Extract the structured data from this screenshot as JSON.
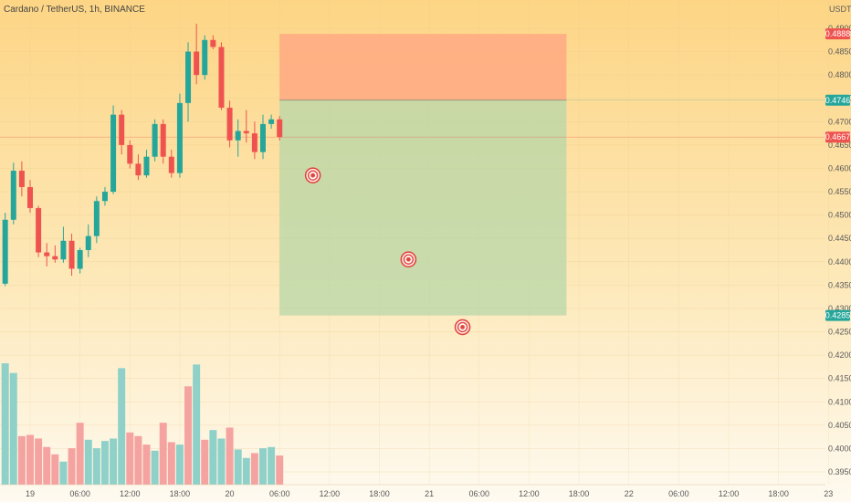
{
  "title": "Cardano / TetherUS, 1h, BINANCE",
  "currency": "USDT",
  "colors": {
    "up": "#26a69a",
    "down": "#ef5350",
    "volume_up": "#8fd1c9",
    "volume_down": "#f5a3a1",
    "stop_zone": "#ffa982",
    "target_zone": "#b7d7a8",
    "current_price": "#ef5350",
    "entry_price": "#26a69a",
    "stop_price": "#ef5350",
    "target_marker": "#e0453f"
  },
  "icons": [
    "target-icon"
  ],
  "chart_data": {
    "type": "candlestick",
    "title": "Cardano / TetherUS, 1h, BINANCE",
    "y_range": [
      0.3925,
      0.4995
    ],
    "y_ticks": [
      "0.4900",
      "0.4850",
      "0.4800",
      "0.4750",
      "0.4700",
      "0.4650",
      "0.4600",
      "0.4550",
      "0.4500",
      "0.4450",
      "0.4400",
      "0.4350",
      "0.4300",
      "0.4250",
      "0.4200",
      "0.4150",
      "0.4100",
      "0.4050",
      "0.4000",
      "0.3950"
    ],
    "x_ticks": [
      "19",
      "06:00",
      "12:00",
      "18:00",
      "20",
      "06:00",
      "12:00",
      "18:00",
      "21",
      "06:00",
      "12:00",
      "18:00",
      "22",
      "06:00",
      "12:00",
      "18:00",
      "23"
    ],
    "x_tick_hours": [
      0,
      6,
      12,
      18,
      24,
      30,
      36,
      42,
      48,
      54,
      60,
      66,
      72,
      78,
      84,
      90,
      96
    ],
    "candles": [
      {
        "h": -3,
        "o": 0.4353,
        "hi": 0.4505,
        "lo": 0.4348,
        "c": 0.449
      },
      {
        "h": -2,
        "o": 0.449,
        "hi": 0.4612,
        "lo": 0.448,
        "c": 0.4595
      },
      {
        "h": -1,
        "o": 0.4595,
        "hi": 0.4615,
        "lo": 0.454,
        "c": 0.456
      },
      {
        "h": 0,
        "o": 0.456,
        "hi": 0.4575,
        "lo": 0.4505,
        "c": 0.4515
      },
      {
        "h": 1,
        "o": 0.4515,
        "hi": 0.452,
        "lo": 0.441,
        "c": 0.442
      },
      {
        "h": 2,
        "o": 0.442,
        "hi": 0.444,
        "lo": 0.439,
        "c": 0.4412
      },
      {
        "h": 3,
        "o": 0.4412,
        "hi": 0.4435,
        "lo": 0.4398,
        "c": 0.4405
      },
      {
        "h": 4,
        "o": 0.4405,
        "hi": 0.4475,
        "lo": 0.4398,
        "c": 0.4445
      },
      {
        "h": 5,
        "o": 0.4445,
        "hi": 0.446,
        "lo": 0.437,
        "c": 0.4385
      },
      {
        "h": 6,
        "o": 0.4385,
        "hi": 0.443,
        "lo": 0.4375,
        "c": 0.4425
      },
      {
        "h": 7,
        "o": 0.4425,
        "hi": 0.448,
        "lo": 0.441,
        "c": 0.4455
      },
      {
        "h": 8,
        "o": 0.4455,
        "hi": 0.454,
        "lo": 0.444,
        "c": 0.453
      },
      {
        "h": 9,
        "o": 0.453,
        "hi": 0.456,
        "lo": 0.452,
        "c": 0.455
      },
      {
        "h": 10,
        "o": 0.455,
        "hi": 0.4735,
        "lo": 0.4545,
        "c": 0.4715
      },
      {
        "h": 11,
        "o": 0.4715,
        "hi": 0.4725,
        "lo": 0.463,
        "c": 0.465
      },
      {
        "h": 12,
        "o": 0.465,
        "hi": 0.466,
        "lo": 0.46,
        "c": 0.461
      },
      {
        "h": 13,
        "o": 0.461,
        "hi": 0.463,
        "lo": 0.4575,
        "c": 0.4585
      },
      {
        "h": 14,
        "o": 0.4585,
        "hi": 0.464,
        "lo": 0.458,
        "c": 0.4625
      },
      {
        "h": 15,
        "o": 0.4625,
        "hi": 0.4705,
        "lo": 0.4615,
        "c": 0.4695
      },
      {
        "h": 16,
        "o": 0.4695,
        "hi": 0.4705,
        "lo": 0.461,
        "c": 0.4625
      },
      {
        "h": 17,
        "o": 0.4625,
        "hi": 0.464,
        "lo": 0.458,
        "c": 0.459
      },
      {
        "h": 18,
        "o": 0.459,
        "hi": 0.476,
        "lo": 0.458,
        "c": 0.474
      },
      {
        "h": 19,
        "o": 0.474,
        "hi": 0.487,
        "lo": 0.47,
        "c": 0.485
      },
      {
        "h": 20,
        "o": 0.485,
        "hi": 0.491,
        "lo": 0.478,
        "c": 0.48
      },
      {
        "h": 21,
        "o": 0.48,
        "hi": 0.4885,
        "lo": 0.479,
        "c": 0.4875
      },
      {
        "h": 22,
        "o": 0.4875,
        "hi": 0.4885,
        "lo": 0.4855,
        "c": 0.486
      },
      {
        "h": 23,
        "o": 0.486,
        "hi": 0.487,
        "lo": 0.4725,
        "c": 0.473
      },
      {
        "h": 24,
        "o": 0.473,
        "hi": 0.4745,
        "lo": 0.4645,
        "c": 0.466
      },
      {
        "h": 25,
        "o": 0.466,
        "hi": 0.4705,
        "lo": 0.4625,
        "c": 0.468
      },
      {
        "h": 26,
        "o": 0.468,
        "hi": 0.4725,
        "lo": 0.4655,
        "c": 0.4675
      },
      {
        "h": 27,
        "o": 0.4675,
        "hi": 0.47,
        "lo": 0.462,
        "c": 0.4635
      },
      {
        "h": 28,
        "o": 0.4635,
        "hi": 0.4715,
        "lo": 0.462,
        "c": 0.4695
      },
      {
        "h": 29,
        "o": 0.4695,
        "hi": 0.4715,
        "lo": 0.4685,
        "c": 0.4705
      },
      {
        "h": 30,
        "o": 0.4705,
        "hi": 0.4712,
        "lo": 0.466,
        "c": 0.4667
      }
    ],
    "volumes": [
      {
        "h": -3,
        "v": 1.0,
        "up": true
      },
      {
        "h": -2,
        "v": 0.92,
        "up": true
      },
      {
        "h": -1,
        "v": 0.4,
        "up": false
      },
      {
        "h": 0,
        "v": 0.41,
        "up": false
      },
      {
        "h": 1,
        "v": 0.38,
        "up": false
      },
      {
        "h": 2,
        "v": 0.31,
        "up": false
      },
      {
        "h": 3,
        "v": 0.25,
        "up": false
      },
      {
        "h": 4,
        "v": 0.19,
        "up": true
      },
      {
        "h": 5,
        "v": 0.3,
        "up": false
      },
      {
        "h": 6,
        "v": 0.51,
        "up": false
      },
      {
        "h": 7,
        "v": 0.37,
        "up": true
      },
      {
        "h": 8,
        "v": 0.3,
        "up": true
      },
      {
        "h": 9,
        "v": 0.36,
        "up": true
      },
      {
        "h": 10,
        "v": 0.38,
        "up": true
      },
      {
        "h": 11,
        "v": 0.96,
        "up": true
      },
      {
        "h": 12,
        "v": 0.43,
        "up": false
      },
      {
        "h": 13,
        "v": 0.4,
        "up": false
      },
      {
        "h": 14,
        "v": 0.33,
        "up": false
      },
      {
        "h": 15,
        "v": 0.28,
        "up": true
      },
      {
        "h": 16,
        "v": 0.51,
        "up": false
      },
      {
        "h": 17,
        "v": 0.35,
        "up": false
      },
      {
        "h": 18,
        "v": 0.33,
        "up": true
      },
      {
        "h": 19,
        "v": 0.81,
        "up": false
      },
      {
        "h": 20,
        "v": 0.99,
        "up": true
      },
      {
        "h": 21,
        "v": 0.37,
        "up": false
      },
      {
        "h": 22,
        "v": 0.45,
        "up": true
      },
      {
        "h": 23,
        "v": 0.38,
        "up": true
      },
      {
        "h": 24,
        "v": 0.47,
        "up": false
      },
      {
        "h": 25,
        "v": 0.29,
        "up": true
      },
      {
        "h": 26,
        "v": 0.22,
        "up": true
      },
      {
        "h": 27,
        "v": 0.26,
        "up": false
      },
      {
        "h": 28,
        "v": 0.3,
        "up": true
      },
      {
        "h": 29,
        "v": 0.31,
        "up": true
      },
      {
        "h": 30,
        "v": 0.24,
        "up": false
      }
    ],
    "position": {
      "type": "short",
      "start_hour": 30,
      "end_hour": 64.5,
      "entry": 0.4746,
      "stop": 0.4888,
      "target": 0.4285
    },
    "price_badges": [
      {
        "name": "stop-price-badge",
        "label": "0.4888",
        "price": 0.4888,
        "role": "stop"
      },
      {
        "name": "entry-price-badge",
        "label": "0.4746",
        "price": 0.4746,
        "role": "entry"
      },
      {
        "name": "current-price-badge",
        "label": "0.4667",
        "price": 0.4667,
        "role": "current"
      },
      {
        "name": "target-price-badge",
        "label": "0.4285",
        "price": 0.4285,
        "role": "target"
      }
    ],
    "targets": [
      {
        "hour": 34,
        "price": 0.4585
      },
      {
        "hour": 45.5,
        "price": 0.4405
      },
      {
        "hour": 52,
        "price": 0.426
      }
    ]
  }
}
